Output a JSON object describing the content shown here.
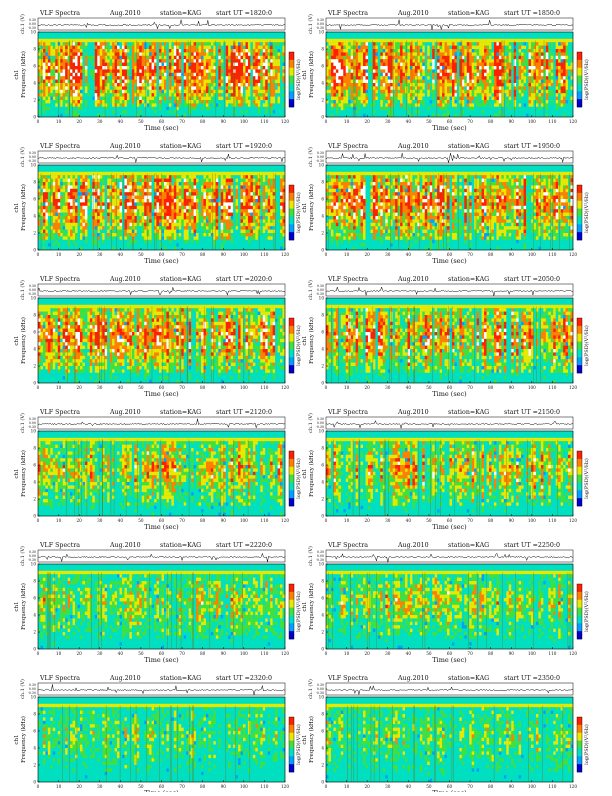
{
  "chart_data": [
    {
      "type": "heatmap",
      "title_left": "VLF Spectra",
      "date": "Aug.2010",
      "station": "station=KAG",
      "start_label": "start UT =1820:0"
    },
    {
      "type": "heatmap",
      "title_left": "VLF Spectra",
      "date": "Aug.2010",
      "station": "station=KAG",
      "start_label": "start UT =1850:0"
    },
    {
      "type": "heatmap",
      "title_left": "VLF Spectra",
      "date": "Aug.2010",
      "station": "station=KAG",
      "start_label": "start UT =1920:0"
    },
    {
      "type": "heatmap",
      "title_left": "VLF Spectra",
      "date": "Aug.2010",
      "station": "station=KAG",
      "start_label": "start UT =1950:0"
    },
    {
      "type": "heatmap",
      "title_left": "VLF Spectra",
      "date": "Aug.2010",
      "station": "station=KAG",
      "start_label": "start UT =2020:0"
    },
    {
      "type": "heatmap",
      "title_left": "VLF Spectra",
      "date": "Aug.2010",
      "station": "station=KAG",
      "start_label": "start UT =2050:0"
    },
    {
      "type": "heatmap",
      "title_left": "VLF Spectra",
      "date": "Aug.2010",
      "station": "station=KAG",
      "start_label": "start UT =2120:0"
    },
    {
      "type": "heatmap",
      "title_left": "VLF Spectra",
      "date": "Aug.2010",
      "station": "station=KAG",
      "start_label": "start UT =2150:0"
    },
    {
      "type": "heatmap",
      "title_left": "VLF Spectra",
      "date": "Aug.2010",
      "station": "station=KAG",
      "start_label": "start UT =2220:0"
    },
    {
      "type": "heatmap",
      "title_left": "VLF Spectra",
      "date": "Aug.2010",
      "station": "station=KAG",
      "start_label": "start UT =2250:0"
    },
    {
      "type": "heatmap",
      "title_left": "VLF Spectra",
      "date": "Aug.2010",
      "station": "station=KAG",
      "start_label": "start UT =2320:0"
    },
    {
      "type": "heatmap",
      "title_left": "VLF Spectra",
      "date": "Aug.2010",
      "station": "station=KAG",
      "start_label": "start UT =2350:0"
    }
  ],
  "shared": {
    "xlabel": "Time (sec)",
    "ylabel": "Frequency (kHz)",
    "ch_label": "ch1",
    "wave_ylabel": "ch.1 (V)",
    "colorbar_label": "log(PSD)(V²/Hz)",
    "x_ticks": [
      "0",
      "10",
      "20",
      "30",
      "40",
      "50",
      "60",
      "70",
      "80",
      "90",
      "100",
      "110",
      "120"
    ],
    "x_range": [
      0,
      120
    ],
    "y_ticks": [
      "0",
      "2",
      "4",
      "6",
      "8",
      "10"
    ],
    "y_range": [
      0,
      10
    ],
    "wave_ticks": [
      "0.30",
      "0.00",
      "-0.30"
    ],
    "colormap": [
      "#0000cc",
      "#00a0ff",
      "#00e0c0",
      "#40e040",
      "#e8e800",
      "#ff8000",
      "#ff2000",
      "#ffffff"
    ],
    "intensity_profile_by_row": [
      0.9,
      0.85,
      0.8,
      0.65,
      0.55,
      0.45
    ]
  }
}
